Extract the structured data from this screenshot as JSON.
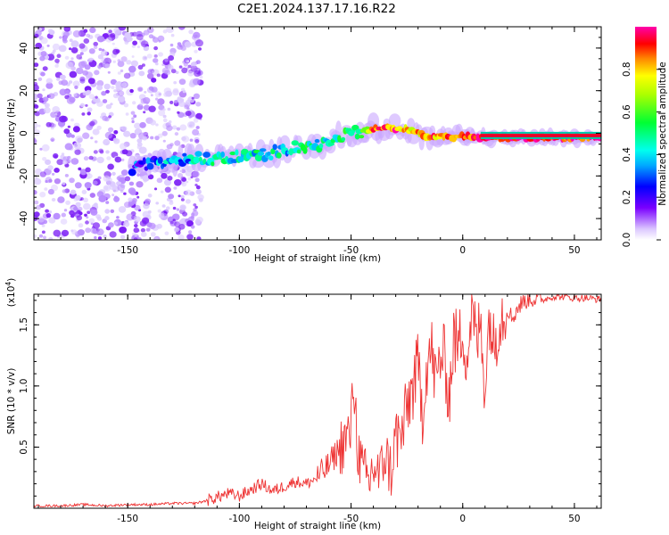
{
  "title": "C2E1.2024.137.17.16.R22",
  "chart_data": [
    {
      "type": "heatmap",
      "xlabel": "Height of straight line (km)",
      "ylabel": "Frequency (Hz)",
      "xlim": [
        -192,
        62
      ],
      "ylim": [
        -50,
        50
      ],
      "xticks": [
        -150,
        -100,
        -50,
        0,
        50
      ],
      "yticks": [
        -40,
        -20,
        0,
        20,
        40
      ],
      "colorbar": {
        "label": "Normalized spectral amplitude",
        "range": [
          0,
          1
        ],
        "ticks": [
          0.0,
          0.2,
          0.4,
          0.6,
          0.8
        ]
      },
      "ridge": {
        "x": [
          -148,
          -140,
          -130,
          -120,
          -110,
          -100,
          -90,
          -80,
          -70,
          -60,
          -50,
          -45,
          -40,
          -35,
          -30,
          -25,
          -20,
          -15,
          -10,
          -5,
          0,
          5,
          10,
          20,
          30,
          40,
          50,
          60
        ],
        "y": [
          -16,
          -14,
          -13,
          -12,
          -12,
          -11,
          -10,
          -8,
          -6,
          -4,
          0,
          1,
          2,
          3,
          2,
          2,
          0,
          -2,
          -1,
          -2,
          -1,
          -2,
          -2,
          -2,
          -2,
          -2,
          -2,
          -2
        ],
        "amplitude": [
          0.25,
          0.3,
          0.35,
          0.4,
          0.45,
          0.4,
          0.45,
          0.4,
          0.45,
          0.4,
          0.5,
          0.6,
          0.9,
          0.9,
          0.9,
          0.8,
          0.8,
          0.85,
          0.85,
          0.85,
          0.9,
          0.9,
          0.95,
          0.95,
          0.95,
          0.95,
          0.95,
          0.95
        ]
      }
    },
    {
      "type": "line",
      "xlabel": "Height of straight line (km)",
      "ylabel": "SNR (10 * v/v)",
      "multiplier": "(x10^4)",
      "xlim": [
        -192,
        62
      ],
      "ylim": [
        0,
        1.75
      ],
      "xticks": [
        -150,
        -100,
        -50,
        0,
        50
      ],
      "yticks": [
        0.5,
        1.0,
        1.5
      ],
      "ytick_labels": [
        "0.5",
        "1.0",
        "1.5"
      ],
      "color": "#ee3333",
      "series": [
        {
          "x": [
            -192,
            -180,
            -170,
            -160,
            -150,
            -140,
            -130,
            -120,
            -115,
            -110,
            -105,
            -100,
            -95,
            -90,
            -85,
            -80,
            -75,
            -70,
            -65,
            -60,
            -55,
            -50,
            -49,
            -47,
            -45,
            -42,
            -40,
            -37,
            -35,
            -32,
            -30,
            -28,
            -26,
            -24,
            -22,
            -20,
            -18,
            -16,
            -14,
            -12,
            -10,
            -8,
            -6,
            -4,
            -2,
            0,
            2,
            4,
            6,
            8,
            10,
            12,
            14,
            16,
            18,
            20,
            22,
            25,
            28,
            30,
            35,
            40,
            45,
            50,
            55,
            60,
            62
          ],
          "y": [
            0.02,
            0.02,
            0.03,
            0.02,
            0.03,
            0.03,
            0.04,
            0.04,
            0.06,
            0.09,
            0.12,
            0.1,
            0.15,
            0.2,
            0.14,
            0.18,
            0.22,
            0.2,
            0.25,
            0.35,
            0.5,
            0.62,
            1.1,
            0.5,
            0.3,
            0.2,
            0.35,
            0.25,
            0.45,
            0.3,
            0.6,
            0.55,
            0.7,
            0.9,
            1.0,
            1.15,
            0.8,
            1.2,
            1.3,
            1.0,
            1.25,
            1.2,
            0.9,
            1.4,
            1.3,
            1.5,
            1.2,
            1.65,
            1.35,
            1.5,
            1.0,
            1.6,
            1.3,
            1.55,
            1.6,
            1.65,
            1.55,
            1.65,
            1.7,
            1.72,
            1.7,
            1.73,
            1.73,
            1.72,
            1.72,
            1.71,
            1.71
          ]
        }
      ]
    }
  ]
}
